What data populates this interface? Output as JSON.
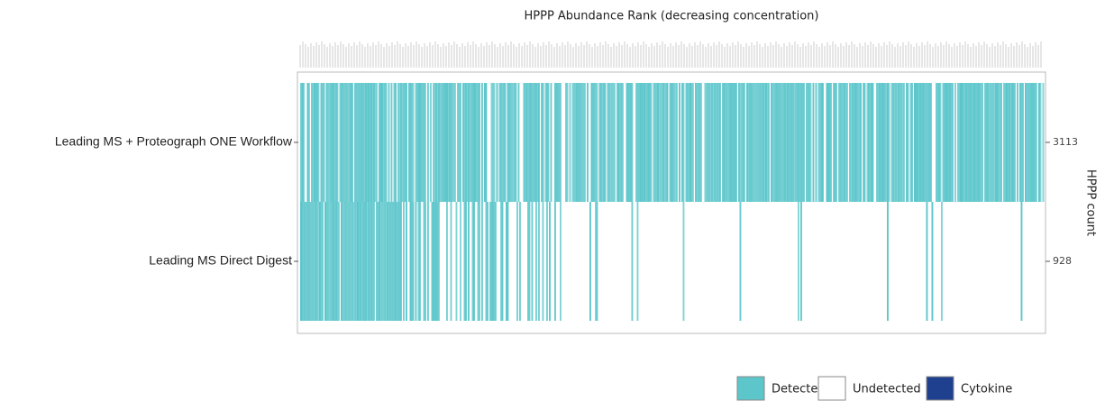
{
  "chart_data": {
    "type": "heatmap",
    "title": "HPPP Abundance Rank (decreasing concentration)",
    "rows": [
      {
        "label": "Leading MS + Proteograph ONE Workflow",
        "count": 3113
      },
      {
        "label": "Leading MS Direct Digest",
        "count": 928
      }
    ],
    "y2label": "HPPP count",
    "legend": [
      {
        "name": "Detected",
        "color": "#5cc6cb"
      },
      {
        "name": "Undetected",
        "color": "#ffffff"
      },
      {
        "name": "Cytokine",
        "color": "#1f3f8f"
      }
    ]
  }
}
